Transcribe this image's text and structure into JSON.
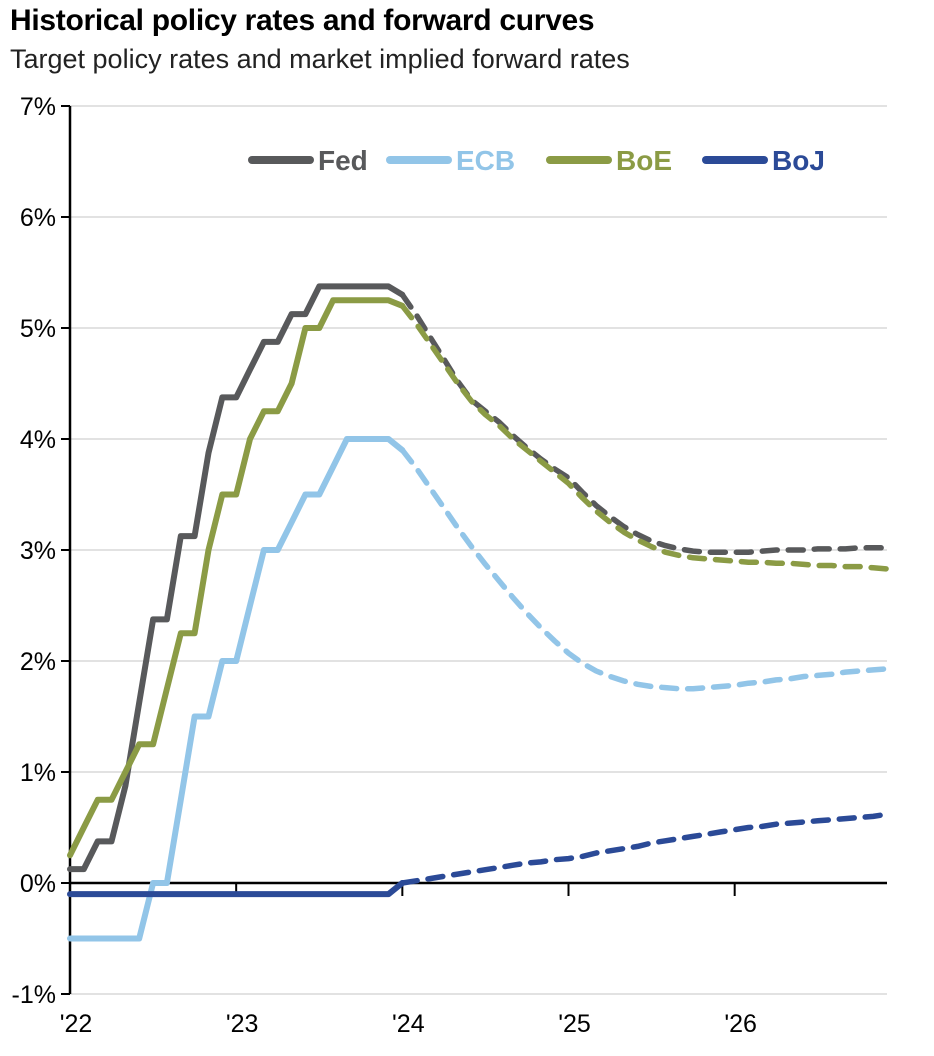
{
  "header": {
    "title": "Historical policy rates and forward curves",
    "subtitle": "Target policy rates and market implied forward rates"
  },
  "chart_data": {
    "type": "line",
    "title": "Historical policy rates and forward curves",
    "subtitle": "Target policy rates and market implied forward rates",
    "x_axis": {
      "start_month": "2022-01",
      "end_month": "2026-12",
      "tick_labels": [
        "'22",
        "'23",
        "'24",
        "'25",
        "'26"
      ],
      "tick_month_index": [
        0,
        12,
        24,
        36,
        48
      ]
    },
    "y_axis": {
      "unit": "%",
      "range": [
        -1,
        7
      ],
      "tick_values": [
        7,
        6,
        5,
        4,
        3,
        2,
        1,
        0,
        -1
      ],
      "tick_labels": [
        "7%",
        "6%",
        "5%",
        "4%",
        "3%",
        "2%",
        "1%",
        "0%",
        "-1%"
      ]
    },
    "grid": "horizontal",
    "legend": {
      "position": "top-center",
      "entries": [
        "Fed",
        "ECB",
        "BoE",
        "BoJ"
      ]
    },
    "line_style": {
      "historical": "solid",
      "forward": "dashed"
    },
    "forward_curve_start_month_index": 24,
    "series": [
      {
        "name": "Fed",
        "color": "#58595b",
        "historical_monthly": [
          0.125,
          0.125,
          0.375,
          0.375,
          0.875,
          1.625,
          2.375,
          2.375,
          3.125,
          3.125,
          3.875,
          4.375,
          4.375,
          4.625,
          4.875,
          4.875,
          5.125,
          5.125,
          5.375,
          5.375,
          5.375,
          5.375,
          5.375,
          5.375,
          5.3
        ],
        "forward_monthly": [
          5.3,
          5.12,
          4.92,
          4.72,
          4.52,
          4.35,
          4.25,
          4.15,
          4.03,
          3.92,
          3.82,
          3.73,
          3.65,
          3.52,
          3.4,
          3.3,
          3.21,
          3.14,
          3.08,
          3.04,
          3.01,
          2.99,
          2.98,
          2.98,
          2.98,
          2.98,
          2.99,
          3.0,
          3.0,
          3.0,
          3.01,
          3.01,
          3.01,
          3.02,
          3.02,
          3.02
        ]
      },
      {
        "name": "ECB",
        "color": "#92c5e8",
        "historical_monthly": [
          -0.5,
          -0.5,
          -0.5,
          -0.5,
          -0.5,
          -0.5,
          0.0,
          0.0,
          0.75,
          1.5,
          1.5,
          2.0,
          2.0,
          2.5,
          3.0,
          3.0,
          3.25,
          3.5,
          3.5,
          3.75,
          4.0,
          4.0,
          4.0,
          4.0,
          3.9
        ],
        "forward_monthly": [
          3.9,
          3.74,
          3.56,
          3.38,
          3.2,
          3.03,
          2.87,
          2.72,
          2.57,
          2.43,
          2.3,
          2.18,
          2.07,
          1.98,
          1.91,
          1.86,
          1.82,
          1.79,
          1.77,
          1.76,
          1.75,
          1.75,
          1.76,
          1.77,
          1.78,
          1.8,
          1.81,
          1.83,
          1.84,
          1.86,
          1.87,
          1.88,
          1.9,
          1.91,
          1.92,
          1.93
        ]
      },
      {
        "name": "BoE",
        "color": "#8b9b45",
        "historical_monthly": [
          0.25,
          0.5,
          0.75,
          0.75,
          1.0,
          1.25,
          1.25,
          1.75,
          2.25,
          2.25,
          3.0,
          3.5,
          3.5,
          4.0,
          4.25,
          4.25,
          4.5,
          5.0,
          5.0,
          5.25,
          5.25,
          5.25,
          5.25,
          5.25,
          5.2
        ],
        "forward_monthly": [
          5.2,
          5.04,
          4.86,
          4.68,
          4.5,
          4.34,
          4.22,
          4.12,
          4.0,
          3.9,
          3.8,
          3.7,
          3.6,
          3.47,
          3.35,
          3.25,
          3.16,
          3.09,
          3.03,
          2.98,
          2.95,
          2.93,
          2.92,
          2.91,
          2.9,
          2.89,
          2.89,
          2.88,
          2.88,
          2.87,
          2.86,
          2.86,
          2.85,
          2.85,
          2.84,
          2.83
        ]
      },
      {
        "name": "BoJ",
        "color": "#2b4a97",
        "historical_monthly": [
          -0.1,
          -0.1,
          -0.1,
          -0.1,
          -0.1,
          -0.1,
          -0.1,
          -0.1,
          -0.1,
          -0.1,
          -0.1,
          -0.1,
          -0.1,
          -0.1,
          -0.1,
          -0.1,
          -0.1,
          -0.1,
          -0.1,
          -0.1,
          -0.1,
          -0.1,
          -0.1,
          -0.1,
          0.0
        ],
        "forward_monthly": [
          0.0,
          0.02,
          0.04,
          0.06,
          0.08,
          0.1,
          0.12,
          0.14,
          0.16,
          0.18,
          0.19,
          0.21,
          0.22,
          0.24,
          0.27,
          0.29,
          0.31,
          0.33,
          0.36,
          0.38,
          0.4,
          0.42,
          0.44,
          0.46,
          0.48,
          0.5,
          0.51,
          0.53,
          0.54,
          0.55,
          0.56,
          0.57,
          0.58,
          0.59,
          0.6,
          0.62
        ]
      }
    ],
    "colors": {
      "grid": "#d9d9d9",
      "axis": "#000000",
      "title": "#000000",
      "subtitle": "#222222"
    }
  }
}
